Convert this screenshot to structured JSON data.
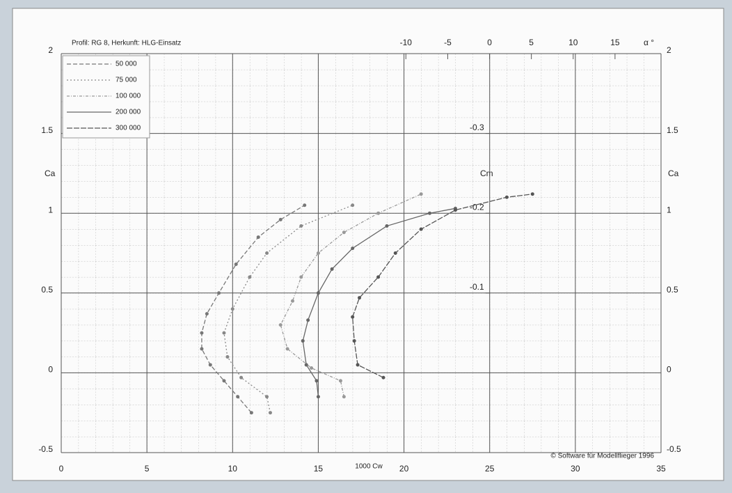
{
  "chart_data": {
    "type": "line",
    "title": "Profil: RG 8, Herkunft: HLG-Einsatz",
    "xlabel": "1000 Cw",
    "ylabel": "Ca",
    "y2label": "Cm",
    "x2label": "α °",
    "footnote": "© Software für Modellflieger 1996",
    "xlim": [
      0,
      35
    ],
    "xticks": [
      0,
      5,
      10,
      15,
      20,
      25,
      30,
      35
    ],
    "ylim": [
      -0.5,
      2
    ],
    "yticks": [
      -0.5,
      0,
      0.5,
      1,
      1.5,
      2
    ],
    "x2lim": [
      -51.2,
      20.5
    ],
    "x2ticks": [
      -10,
      -5,
      0,
      5,
      10,
      15
    ],
    "y2lim": [
      0.1,
      -0.4
    ],
    "y2ticks": [
      -0.3,
      -0.2,
      -0.1
    ],
    "grid": true,
    "series": [
      {
        "name": "50 000",
        "color": "#777",
        "x": [
          11.1,
          10.3,
          9.5,
          8.7,
          8.2,
          8.2,
          8.5,
          9.2,
          10.2,
          11.5,
          12.8,
          14.2
        ],
        "values": [
          -0.25,
          -0.15,
          -0.05,
          0.05,
          0.15,
          0.25,
          0.37,
          0.5,
          0.68,
          0.85,
          0.96,
          1.05
        ]
      },
      {
        "name": "75 000",
        "color": "#888",
        "x": [
          12.2,
          12,
          10.5,
          9.7,
          9.5,
          10,
          11,
          12,
          14,
          17
        ],
        "values": [
          -0.25,
          -0.15,
          -0.03,
          0.1,
          0.25,
          0.4,
          0.6,
          0.75,
          0.92,
          1.05
        ]
      },
      {
        "name": "100 000",
        "color": "#999",
        "x": [
          16.5,
          16.3,
          14.6,
          13.2,
          12.8,
          13.5,
          14,
          15,
          16.5,
          18.5,
          21
        ],
        "values": [
          -0.15,
          -0.05,
          0.03,
          0.15,
          0.3,
          0.45,
          0.6,
          0.75,
          0.88,
          1.0,
          1.12
        ]
      },
      {
        "name": "200 000",
        "color": "#666",
        "x": [
          15,
          14.9,
          14.3,
          14.1,
          14.4,
          15,
          15.8,
          17,
          19,
          21.5,
          23
        ],
        "values": [
          -0.15,
          -0.05,
          0.05,
          0.2,
          0.33,
          0.5,
          0.65,
          0.78,
          0.92,
          1.0,
          1.03
        ]
      },
      {
        "name": "300 000",
        "color": "#555",
        "x": [
          18.8,
          17.3,
          17.1,
          17,
          17.4,
          18.5,
          19.5,
          21,
          23,
          26,
          27.5
        ],
        "values": [
          -0.03,
          0.05,
          0.2,
          0.35,
          0.47,
          0.6,
          0.75,
          0.9,
          1.02,
          1.1,
          1.12
        ]
      }
    ]
  }
}
